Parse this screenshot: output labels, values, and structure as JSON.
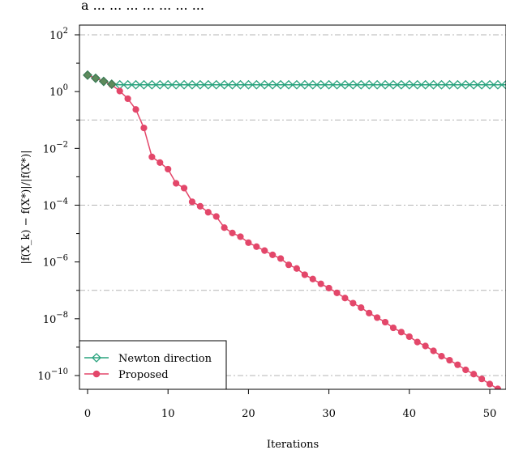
{
  "top_text": "a ... ... ... ... ... ... ...",
  "chart_data": {
    "type": "line",
    "title": "",
    "xlabel": "Iterations",
    "ylabel": "|f(X_k) − f(X*)|/|f(X*)|",
    "xlim": [
      -1,
      52
    ],
    "ylim": [
      -10.6,
      2.1
    ],
    "y_scale": "log10",
    "x_ticks": [
      0,
      10,
      20,
      30,
      40,
      50
    ],
    "y_tick_labels": [
      {
        "exp": 2,
        "base": "10",
        "power": "2"
      },
      {
        "exp": 0,
        "base": "10",
        "power": "0"
      },
      {
        "exp": -2,
        "base": "10",
        "power": "−2"
      },
      {
        "exp": -4,
        "base": "10",
        "power": "−4"
      },
      {
        "exp": -6,
        "base": "10",
        "power": "−6"
      },
      {
        "exp": -8,
        "base": "10",
        "power": "−8"
      },
      {
        "exp": -10,
        "base": "10",
        "power": "−10"
      }
    ],
    "y_minor_exponents": [
      1,
      -1,
      -3,
      -5,
      -7,
      -9
    ],
    "grid_exponents": [
      2,
      -1,
      -4,
      -7,
      -10
    ],
    "grid": true,
    "legend_position": "bottom-left",
    "series": [
      {
        "name": "Newton direction",
        "color": "#2aa37e",
        "marker": "diamond-open",
        "log10_values": [
          0.58,
          0.47,
          0.36,
          0.26,
          0.24,
          0.24,
          0.24,
          0.24,
          0.24,
          0.24,
          0.24,
          0.24,
          0.24,
          0.24,
          0.24,
          0.24,
          0.24,
          0.24,
          0.24,
          0.24,
          0.24,
          0.24,
          0.24,
          0.24,
          0.24,
          0.24,
          0.24,
          0.24,
          0.24,
          0.24,
          0.24,
          0.24,
          0.24,
          0.24,
          0.24,
          0.24,
          0.24,
          0.24,
          0.24,
          0.24,
          0.24,
          0.24,
          0.24,
          0.24,
          0.24,
          0.24,
          0.24,
          0.24,
          0.24,
          0.24,
          0.24,
          0.24,
          0.24
        ]
      },
      {
        "name": "Proposed",
        "color": "#e3476a",
        "marker": "circle-filled",
        "log10_values": [
          0.58,
          0.47,
          0.36,
          0.24,
          0.02,
          -0.25,
          -0.63,
          -1.28,
          -2.3,
          -2.5,
          -2.73,
          -3.23,
          -3.4,
          -3.88,
          -4.04,
          -4.25,
          -4.4,
          -4.79,
          -4.98,
          -5.11,
          -5.32,
          -5.46,
          -5.6,
          -5.75,
          -5.88,
          -6.1,
          -6.23,
          -6.45,
          -6.6,
          -6.77,
          -6.92,
          -7.09,
          -7.27,
          -7.45,
          -7.61,
          -7.8,
          -7.96,
          -8.12,
          -8.32,
          -8.47,
          -8.63,
          -8.82,
          -8.96,
          -9.13,
          -9.32,
          -9.46,
          -9.62,
          -9.8,
          -9.95,
          -10.12,
          -10.3,
          -10.47
        ]
      }
    ]
  }
}
